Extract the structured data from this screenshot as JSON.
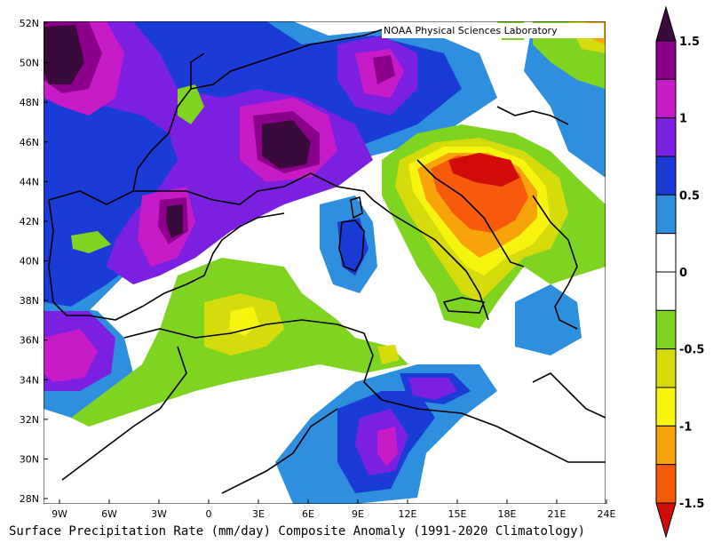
{
  "map": {
    "credit": "NOAA Physical Sciences Laboratory",
    "caption": "Surface Precipitation Rate (mm/day) Composite Anomaly (1991-2020 Climatology)",
    "lon_ticks": [
      "9W",
      "6W",
      "3W",
      "0",
      "3E",
      "6E",
      "9E",
      "12E",
      "15E",
      "18E",
      "21E",
      "24E"
    ],
    "lat_ticks": [
      "52N",
      "50N",
      "48N",
      "46N",
      "44N",
      "42N",
      "40N",
      "38N",
      "36N",
      "34N",
      "32N",
      "30N",
      "28N"
    ],
    "lon_range": [
      -10,
      24
    ],
    "lat_range": [
      28,
      52
    ]
  },
  "colorbar": {
    "labels": [
      "1.5",
      "1",
      "0.5",
      "0",
      "-0.5",
      "-1",
      "-1.5"
    ],
    "colors": {
      "dark_purple": "#3b0a3d",
      "purple": "#8b008b",
      "magenta": "#c71bc7",
      "violet": "#7b1fe0",
      "blue": "#1b3bd6",
      "light_blue": "#2d8fde",
      "white": "#ffffff",
      "green": "#7fd321",
      "olive": "#d6dc0c",
      "yellow": "#f7f510",
      "orange": "#f7a40a",
      "red_orange": "#f75a0a",
      "red": "#d10a0a"
    }
  }
}
